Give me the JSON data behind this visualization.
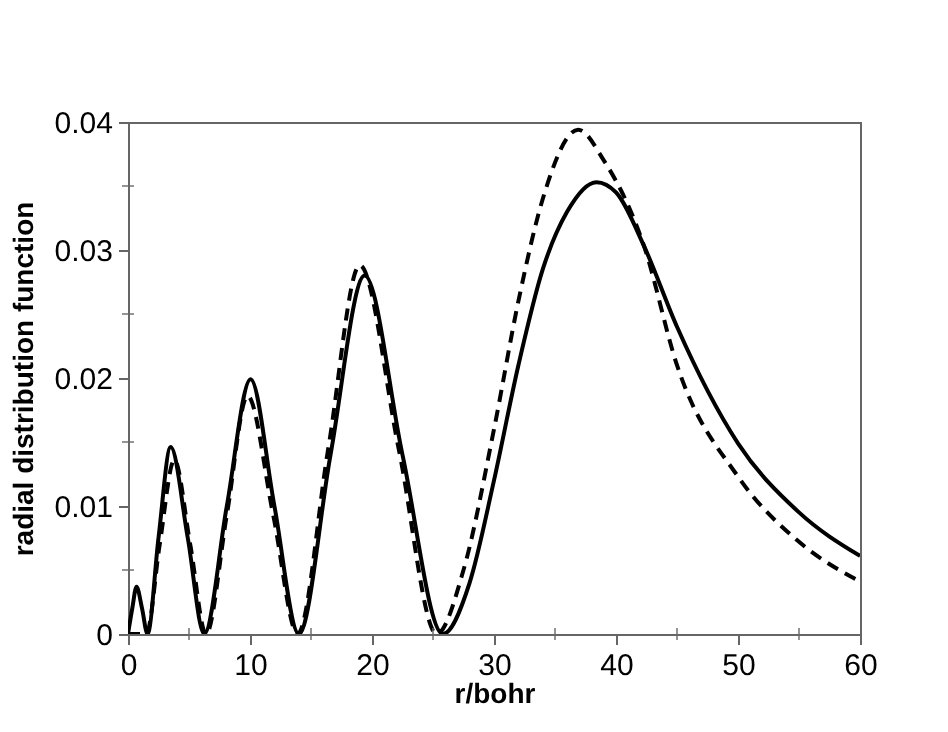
{
  "chart_data": {
    "type": "line",
    "xlabel": "r/bohr",
    "ylabel": "radial distribution function",
    "xlim": [
      0,
      60
    ],
    "ylim": [
      0,
      0.04
    ],
    "xticks": [
      0,
      {
        "value": 5,
        "label": null
      },
      10,
      {
        "value": 15,
        "label": null
      },
      20,
      {
        "value": 25,
        "label": null
      },
      30,
      {
        "value": 35,
        "label": null
      },
      40,
      {
        "value": 45,
        "label": null
      },
      50,
      {
        "value": 55,
        "label": null
      },
      60
    ],
    "yticks": [
      0,
      {
        "value": 0.005,
        "label": null
      },
      0.01,
      {
        "value": 0.015,
        "label": null
      },
      0.02,
      {
        "value": 0.025,
        "label": null
      },
      0.03,
      {
        "value": 0.035,
        "label": null
      },
      0.04
    ],
    "grid": false,
    "series": [
      {
        "color": "#000000",
        "line_style": "solid",
        "x": [
          0,
          0.35,
          0.7,
          1.15,
          1.6,
          2.5,
          3.5,
          4.9,
          6.25,
          8.1,
          10.05,
          12.0,
          14.0,
          16.6,
          19.4,
          22.5,
          25.8,
          28,
          30,
          32,
          34,
          36,
          38.4,
          40,
          42.3,
          45,
          50,
          55,
          60
        ],
        "values": [
          0,
          0.002,
          0.0037,
          0.002,
          0,
          0.0075,
          0.0146,
          0.0075,
          0,
          0.01,
          0.0199,
          0.01,
          0,
          0.014,
          0.028,
          0.014,
          0,
          0.004,
          0.012,
          0.021,
          0.0285,
          0.033,
          0.0353,
          0.0345,
          0.0303,
          0.024,
          0.0149,
          0.0095,
          0.0061
        ]
      },
      {
        "color": "#000000",
        "line_style": "dashed",
        "x": [
          0,
          1.5,
          2.6,
          3.8,
          5.1,
          6.4,
          8.1,
          9.8,
          11.9,
          13.9,
          16.4,
          19.0,
          22.2,
          25.3,
          27.5,
          30,
          32,
          34,
          36.9,
          39,
          42.3,
          45,
          50,
          55,
          60
        ],
        "values": [
          0,
          0,
          0.007,
          0.0136,
          0.007,
          0,
          0.0093,
          0.0186,
          0.0093,
          0,
          0.0144,
          0.0288,
          0.0144,
          0,
          0.005,
          0.016,
          0.026,
          0.034,
          0.0394,
          0.037,
          0.0303,
          0.021,
          0.0123,
          0.0072,
          0.0041
        ]
      }
    ]
  }
}
